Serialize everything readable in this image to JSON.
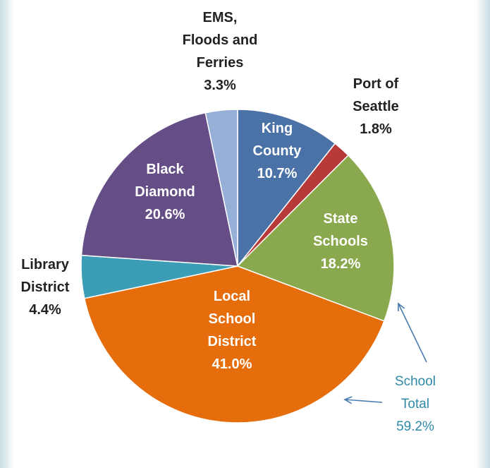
{
  "chart_data": {
    "type": "pie",
    "title": "",
    "start_angle_deg": 0,
    "direction": "clockwise",
    "slices": [
      {
        "label_lines": [
          "King",
          "County"
        ],
        "value": 10.7,
        "value_text": "10.7%",
        "color": "#4a72a6",
        "label_inside": true
      },
      {
        "label_lines": [
          "Port of",
          "Seattle"
        ],
        "value": 1.8,
        "value_text": "1.8%",
        "color": "#b83a38",
        "label_inside": false
      },
      {
        "label_lines": [
          "State",
          "Schools"
        ],
        "value": 18.2,
        "value_text": "18.2%",
        "color": "#8aa84d",
        "label_inside": true
      },
      {
        "label_lines": [
          "Local",
          "School",
          "District"
        ],
        "value": 41.0,
        "value_text": "41.0%",
        "color": "#e56d0b",
        "label_inside": true
      },
      {
        "label_lines": [
          "Library",
          "District"
        ],
        "value": 4.4,
        "value_text": "4.4%",
        "color": "#3b9db6",
        "label_inside": false
      },
      {
        "label_lines": [
          "Black",
          "Diamond"
        ],
        "value": 20.6,
        "value_text": "20.6%",
        "color": "#654e86",
        "label_inside": true
      },
      {
        "label_lines": [
          "EMS,",
          "Floods and",
          "Ferries"
        ],
        "value": 3.3,
        "value_text": "3.3%",
        "color": "#96afd6",
        "label_inside": false
      }
    ],
    "annotation": {
      "label_lines": [
        "School",
        "Total"
      ],
      "value": 59.2,
      "value_text": "59.2%",
      "color": "#2f8aa8",
      "refers_to": [
        "State Schools",
        "Local School District"
      ]
    },
    "legend": "none"
  }
}
